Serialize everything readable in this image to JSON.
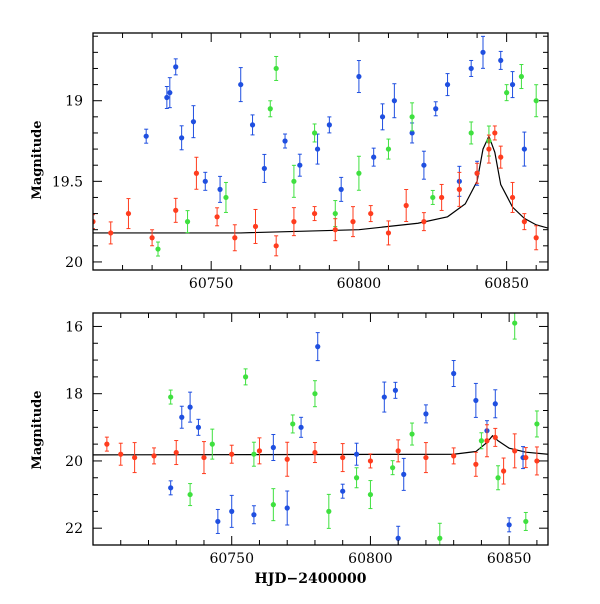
{
  "colors": {
    "blue": "#1f4fe0",
    "green": "#3fe03f",
    "red": "#ff3c1e",
    "model": "#000000"
  },
  "chart_data": [
    {
      "type": "scatter",
      "panel": "top",
      "title": "",
      "xlabel": "",
      "ylabel": "Magnitude",
      "xlim": [
        60710,
        60864
      ],
      "ylim": [
        20.05,
        18.58
      ],
      "y_inverted": true,
      "xticks": [
        "60750",
        "60800",
        "60850"
      ],
      "yticks": [
        "19",
        "19.5",
        "20"
      ],
      "series": [
        {
          "color": "blue",
          "x": [
            60728,
            60735,
            60736,
            60738,
            60740,
            60744,
            60748,
            60753,
            60760,
            60764,
            60768,
            60775,
            60780,
            60786,
            60790,
            60794,
            60800,
            60805,
            60808,
            60812,
            60818,
            60822,
            60826,
            60830,
            60834,
            60838,
            60840,
            60842,
            60848,
            60852,
            60856
          ],
          "y": [
            19.22,
            18.98,
            18.95,
            18.79,
            19.23,
            19.13,
            19.5,
            19.55,
            18.9,
            19.15,
            19.42,
            19.25,
            19.4,
            19.3,
            19.15,
            19.55,
            18.85,
            19.35,
            19.1,
            19.0,
            19.2,
            19.4,
            19.05,
            18.9,
            19.5,
            18.8,
            19.45,
            18.7,
            18.75,
            18.9,
            19.3
          ]
        },
        {
          "color": "green",
          "x": [
            60732,
            60742,
            60755,
            60770,
            60772,
            60778,
            60785,
            60792,
            60800,
            60810,
            60818,
            60825,
            60838,
            60844,
            60850,
            60855,
            60860
          ],
          "y": [
            19.92,
            19.75,
            19.6,
            19.05,
            18.8,
            19.5,
            19.2,
            19.7,
            19.45,
            19.3,
            19.1,
            19.6,
            19.2,
            19.25,
            18.95,
            18.85,
            19.0
          ]
        },
        {
          "color": "red",
          "x": [
            60710,
            60716,
            60722,
            60730,
            60738,
            60745,
            60752,
            60758,
            60765,
            60772,
            60778,
            60785,
            60792,
            60798,
            60804,
            60810,
            60816,
            60822,
            60828,
            60834,
            60840,
            60844,
            60846,
            60848,
            60852,
            60856,
            60860
          ],
          "y": [
            19.75,
            19.82,
            19.7,
            19.85,
            19.68,
            19.45,
            19.72,
            19.85,
            19.78,
            19.9,
            19.75,
            19.7,
            19.8,
            19.75,
            19.7,
            19.82,
            19.65,
            19.75,
            19.6,
            19.55,
            19.45,
            19.3,
            19.2,
            19.35,
            19.6,
            19.75,
            19.85
          ]
        }
      ],
      "model_curve": {
        "x": [
          60710,
          60760,
          60800,
          60820,
          60830,
          60836,
          60840,
          60842,
          60844,
          60846,
          60848,
          60852,
          60856,
          60860,
          60864
        ],
        "y": [
          19.82,
          19.82,
          19.8,
          19.76,
          19.72,
          19.64,
          19.5,
          19.3,
          19.22,
          19.32,
          19.52,
          19.66,
          19.73,
          19.77,
          19.79
        ]
      }
    },
    {
      "type": "scatter",
      "panel": "bottom",
      "title": "",
      "xlabel": "HJD−2400000",
      "ylabel": "Magnitude",
      "xlim": [
        60700,
        60864
      ],
      "ylim": [
        22.5,
        15.6
      ],
      "y_inverted": true,
      "xticks": [
        "60750",
        "60800",
        "60850"
      ],
      "yticks": [
        "16",
        "18",
        "20",
        "22"
      ],
      "series": [
        {
          "color": "blue",
          "x": [
            60728,
            60732,
            60735,
            60738,
            60745,
            60750,
            60758,
            60765,
            60770,
            60775,
            60781,
            60790,
            60795,
            60805,
            60809,
            60810,
            60812,
            60820,
            60830,
            60838,
            60842,
            60845,
            60850,
            60855
          ],
          "y": [
            20.8,
            18.7,
            18.4,
            19.0,
            21.8,
            21.5,
            21.6,
            19.6,
            21.4,
            19.0,
            16.6,
            20.9,
            19.8,
            18.1,
            17.9,
            22.3,
            20.4,
            18.6,
            17.4,
            18.2,
            19.1,
            18.3,
            21.9,
            19.9
          ]
        },
        {
          "color": "green",
          "x": [
            60728,
            60735,
            60743,
            60755,
            60758,
            60765,
            60772,
            60780,
            60785,
            60795,
            60800,
            60808,
            60815,
            60825,
            60840,
            60846,
            60852,
            60856,
            60860
          ],
          "y": [
            18.1,
            21.0,
            19.5,
            17.5,
            19.8,
            21.3,
            18.9,
            18.0,
            21.5,
            20.5,
            21.0,
            20.2,
            19.2,
            22.3,
            19.4,
            20.5,
            15.9,
            21.8,
            18.9
          ]
        },
        {
          "color": "red",
          "x": [
            60705,
            60710,
            60715,
            60722,
            60730,
            60740,
            60750,
            60760,
            60770,
            60780,
            60790,
            60800,
            60810,
            60820,
            60830,
            60838,
            60842,
            60845,
            60848,
            60852,
            60856,
            60860
          ],
          "y": [
            19.5,
            19.8,
            19.9,
            19.85,
            19.75,
            19.9,
            19.8,
            19.7,
            19.95,
            19.75,
            19.9,
            20.0,
            19.7,
            19.9,
            19.85,
            20.1,
            19.4,
            19.3,
            20.3,
            19.7,
            19.9,
            20.0
          ]
        }
      ],
      "model_curve": {
        "x": [
          60700,
          60830,
          60838,
          60842,
          60844,
          60846,
          60850,
          60856,
          60864
        ],
        "y": [
          19.82,
          19.8,
          19.72,
          19.45,
          19.25,
          19.4,
          19.62,
          19.74,
          19.8
        ]
      }
    }
  ]
}
